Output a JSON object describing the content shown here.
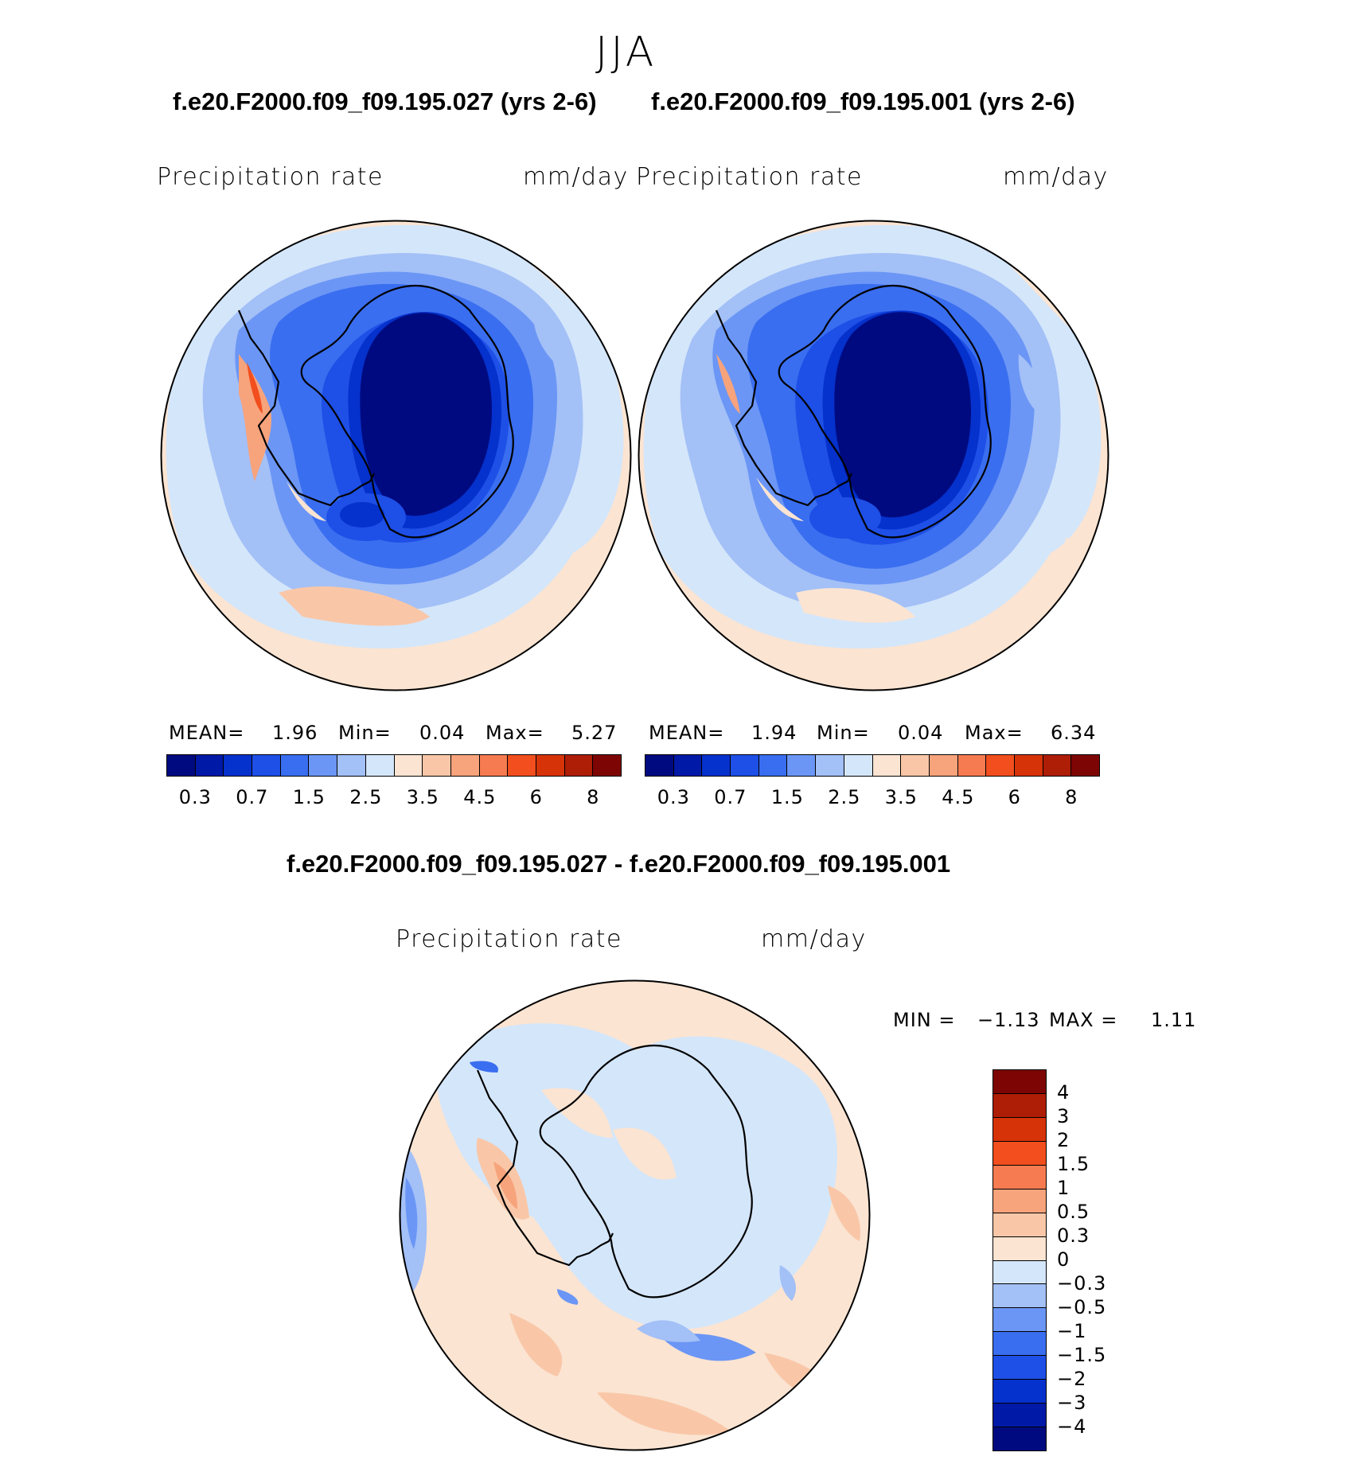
{
  "season": "JJA",
  "panels": [
    {
      "title": "f.e20.F2000.f09_f09.195.027 (yrs 2-6)",
      "variable": "Precipitation rate",
      "units": "mm/day",
      "stats": {
        "mean_label": "MEAN=",
        "mean": "1.96",
        "min_label": "Min=",
        "min": "0.04",
        "max_label": "Max=",
        "max": "5.27"
      }
    },
    {
      "title": "f.e20.F2000.f09_f09.195.001 (yrs 2-6)",
      "variable": "Precipitation rate",
      "units": "mm/day",
      "stats": {
        "mean_label": "MEAN=",
        "mean": "1.94",
        "min_label": "Min=",
        "min": "0.04",
        "max_label": "Max=",
        "max": "6.34"
      }
    }
  ],
  "diff_panel": {
    "title": "f.e20.F2000.f09_f09.195.027 - f.e20.F2000.f09_f09.195.001",
    "variable": "Precipitation rate",
    "units": "mm/day",
    "stats": {
      "min_label": "MIN =",
      "min": "−1.13",
      "max_label": "MAX =",
      "max": "1.11"
    }
  },
  "colorbar": {
    "colors": [
      "#000a80",
      "#0019a6",
      "#0531cc",
      "#1e4fe6",
      "#3a6ef0",
      "#6b96f5",
      "#a3c0f7",
      "#d4e6fa",
      "#fbe4d2",
      "#f9c7a8",
      "#f7a37c",
      "#f67b50",
      "#f24e1e",
      "#d63309",
      "#ae1d06",
      "#7d0503"
    ],
    "ticks": [
      "0.3",
      "0.7",
      "1.5",
      "2.5",
      "3.5",
      "4.5",
      "6",
      "8"
    ]
  },
  "diff_colorbar": {
    "colors": [
      "#7d0503",
      "#ae1d06",
      "#d63309",
      "#f24e1e",
      "#f67b50",
      "#f7a37c",
      "#f9c7a8",
      "#fbe4d2",
      "#d4e6fa",
      "#a3c0f7",
      "#6b96f5",
      "#3a6ef0",
      "#1e4fe6",
      "#0531cc",
      "#0019a6",
      "#000a80"
    ],
    "ticks": [
      "4",
      "3",
      "2",
      "1.5",
      "1",
      "0.5",
      "0.3",
      "0",
      "−0.3",
      "−0.5",
      "−1",
      "−1.5",
      "−2",
      "−3",
      "−4"
    ]
  }
}
